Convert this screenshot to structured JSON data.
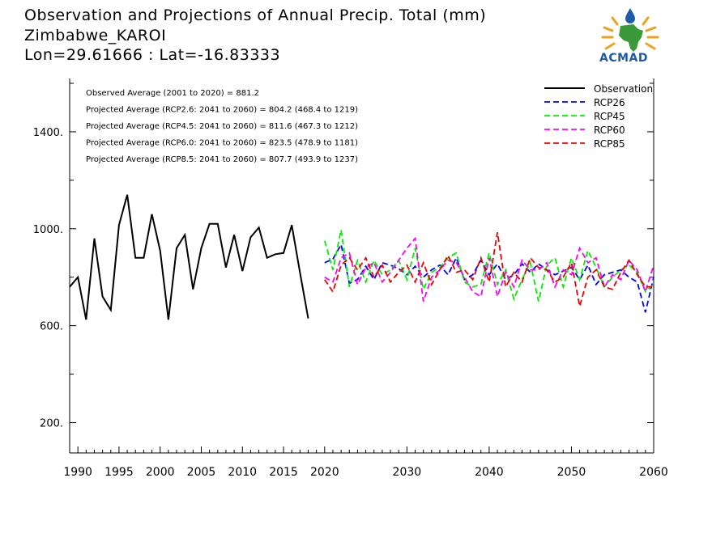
{
  "header": {
    "title": "Observation and Projections of Annual Precip. Total (mm)",
    "location": "Zimbabwe_KAROI",
    "coords": "Lon=29.61666 : Lat=-16.83333",
    "logo_text": "ACMAD"
  },
  "colors": {
    "Observation": "#000000",
    "RCP26": "#0000ff",
    "RCP45": "#00ee00",
    "RCP60": "#ff00ff",
    "RCP85": "#ee0000",
    "logo_blue": "#1f5aa8",
    "logo_green": "#3a9a3a",
    "logo_orange": "#f0a020"
  },
  "chart_data": {
    "type": "line",
    "xlim": [
      1989,
      2060
    ],
    "ylim": [
      75,
      1620
    ],
    "yticks": [
      200,
      600,
      1000,
      1400
    ],
    "ytick_labels": [
      "200.",
      "600.",
      "1000.",
      "1400."
    ],
    "xticks_labeled": [
      1990,
      1995,
      2000,
      2005,
      2010,
      2015,
      2020,
      2030,
      2040,
      2050,
      2060
    ],
    "annotations": [
      "Observed Average (2001 to 2020) = 881.2",
      "Projected Average (RCP2.6: 2041 to 2060) = 804.2 (468.4 to 1219)",
      "Projected Average (RCP4.5: 2041 to 2060) = 811.6 (467.3 to 1212)",
      "Projected Average (RCP6.0: 2041 to 2060) = 823.5 (478.9 to 1181)",
      "Projected Average (RCP8.5: 2041 to 2060) = 807.7 (493.9 to 1237)"
    ],
    "legend_position": "top-right",
    "series": [
      {
        "name": "Observation",
        "style": "solid",
        "x": [
          1989,
          1990,
          1991,
          1992,
          1993,
          1994,
          1995,
          1996,
          1997,
          1998,
          1999,
          2000,
          2001,
          2002,
          2003,
          2004,
          2005,
          2006,
          2007,
          2008,
          2009,
          2010,
          2011,
          2012,
          2013,
          2014,
          2015,
          2016,
          2017,
          2018,
          2019,
          2020
        ],
        "values": [
          760,
          800,
          625,
          960,
          720,
          665,
          1015,
          1140,
          880,
          880,
          1060,
          910,
          625,
          920,
          975,
          750,
          920,
          1020,
          1020,
          840,
          975,
          825,
          965,
          1005,
          880,
          895,
          900,
          1015,
          820,
          630,
          null,
          null
        ]
      },
      {
        "name": "RCP26",
        "style": "dashed",
        "x": [
          2020,
          2021,
          2022,
          2023,
          2024,
          2025,
          2026,
          2027,
          2028,
          2029,
          2030,
          2031,
          2032,
          2033,
          2034,
          2035,
          2036,
          2037,
          2038,
          2039,
          2040,
          2041,
          2042,
          2043,
          2044,
          2045,
          2046,
          2047,
          2048,
          2049,
          2050,
          2051,
          2052,
          2053,
          2054,
          2055,
          2056,
          2057,
          2058,
          2059,
          2060
        ],
        "values": [
          860,
          875,
          935,
          775,
          790,
          845,
          790,
          860,
          850,
          835,
          810,
          845,
          800,
          830,
          850,
          810,
          880,
          790,
          810,
          870,
          810,
          855,
          790,
          810,
          855,
          820,
          855,
          830,
          810,
          825,
          840,
          790,
          850,
          770,
          810,
          820,
          830,
          800,
          780,
          655,
          800
        ]
      },
      {
        "name": "RCP45",
        "style": "dashed",
        "x": [
          2020,
          2021,
          2022,
          2023,
          2024,
          2025,
          2026,
          2027,
          2028,
          2029,
          2030,
          2031,
          2032,
          2033,
          2034,
          2035,
          2036,
          2037,
          2038,
          2039,
          2040,
          2041,
          2042,
          2043,
          2044,
          2045,
          2046,
          2047,
          2048,
          2049,
          2050,
          2051,
          2052,
          2053,
          2054,
          2055,
          2056,
          2057,
          2058,
          2059,
          2060
        ],
        "values": [
          950,
          830,
          995,
          760,
          870,
          780,
          870,
          810,
          830,
          870,
          790,
          920,
          750,
          820,
          840,
          880,
          900,
          780,
          760,
          770,
          900,
          770,
          830,
          710,
          790,
          860,
          700,
          850,
          880,
          760,
          880,
          790,
          910,
          840,
          760,
          800,
          830,
          850,
          820,
          740,
          770
        ]
      },
      {
        "name": "RCP60",
        "style": "dashed",
        "x": [
          2020,
          2021,
          2022,
          2023,
          2024,
          2025,
          2026,
          2027,
          2028,
          2029,
          2030,
          2031,
          2032,
          2033,
          2034,
          2035,
          2036,
          2037,
          2038,
          2039,
          2040,
          2041,
          2042,
          2043,
          2044,
          2045,
          2046,
          2047,
          2048,
          2049,
          2050,
          2051,
          2052,
          2053,
          2054,
          2055,
          2056,
          2057,
          2058,
          2059,
          2060
        ],
        "values": [
          800,
          780,
          880,
          900,
          770,
          840,
          860,
          780,
          820,
          870,
          920,
          960,
          700,
          800,
          830,
          870,
          860,
          800,
          740,
          720,
          880,
          720,
          820,
          760,
          870,
          830,
          830,
          860,
          760,
          830,
          810,
          920,
          860,
          880,
          760,
          810,
          790,
          870,
          830,
          740,
          850
        ]
      },
      {
        "name": "RCP85",
        "style": "dashed",
        "x": [
          2020,
          2021,
          2022,
          2023,
          2024,
          2025,
          2026,
          2027,
          2028,
          2029,
          2030,
          2031,
          2032,
          2033,
          2034,
          2035,
          2036,
          2037,
          2038,
          2039,
          2040,
          2041,
          2042,
          2043,
          2044,
          2045,
          2046,
          2047,
          2048,
          2049,
          2050,
          2051,
          2052,
          2053,
          2054,
          2055,
          2056,
          2057,
          2058,
          2059,
          2060
        ],
        "values": [
          790,
          740,
          850,
          880,
          830,
          880,
          800,
          850,
          780,
          820,
          850,
          780,
          860,
          770,
          830,
          890,
          820,
          830,
          790,
          880,
          780,
          985,
          760,
          820,
          780,
          880,
          840,
          830,
          780,
          800,
          860,
          680,
          800,
          830,
          760,
          750,
          820,
          870,
          810,
          760,
          760
        ]
      }
    ]
  }
}
